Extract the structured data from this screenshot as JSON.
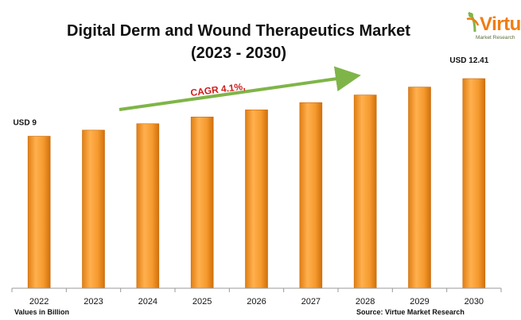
{
  "title_line1": "Digital Derm and Wound Therapeutics Market",
  "title_line2": "(2023 - 2030)",
  "logo": {
    "word": "Virtue",
    "subtitle": "Market Research",
    "color": "#f07d10"
  },
  "footer": {
    "units_note": "Values in Billion",
    "source": "Source: Virtue Market Research"
  },
  "cagr_label": "CAGR 4.1%,",
  "colors": {
    "bar": "#f39a2c",
    "bar_dark": "#d4710c",
    "arrow": "#7fb548",
    "cagr_text": "#d01c1c"
  },
  "chart_data": {
    "type": "bar",
    "title": "Digital Derm and Wound Therapeutics Market (2023 - 2030)",
    "categories": [
      "2022",
      "2023",
      "2024",
      "2025",
      "2026",
      "2027",
      "2028",
      "2029",
      "2030"
    ],
    "values": [
      9.0,
      9.36,
      9.74,
      10.14,
      10.56,
      10.99,
      11.44,
      11.91,
      12.41
    ],
    "data_labels": [
      {
        "category": "2022",
        "text": "USD 9"
      },
      {
        "category": "2030",
        "text": "USD 12.41"
      }
    ],
    "annotation": "CAGR 4.1%,",
    "xlabel": "",
    "ylabel": "",
    "ylim": [
      0,
      12.41
    ],
    "grid": false,
    "legend": "none"
  }
}
